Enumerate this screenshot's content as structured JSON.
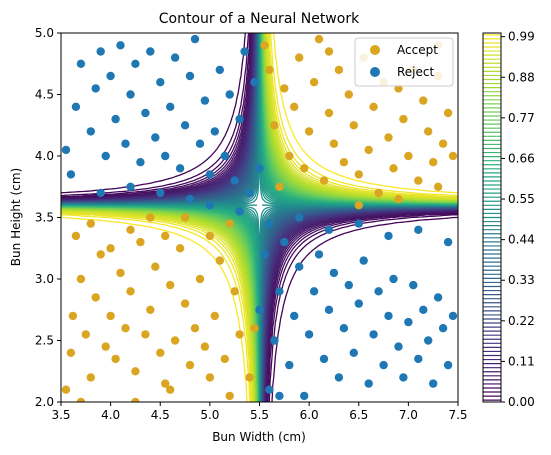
{
  "chart_data": {
    "type": "scatter",
    "title": "Contour of a Neural Network",
    "xlabel": "Bun Width (cm)",
    "ylabel": "Bun Height (cm)",
    "xlim": [
      3.5,
      7.5
    ],
    "ylim": [
      2.0,
      5.0
    ],
    "x_ticks": [
      "3.5",
      "4.0",
      "4.5",
      "5.0",
      "5.5",
      "6.0",
      "6.5",
      "7.0",
      "7.5"
    ],
    "y_ticks": [
      "2.0",
      "2.5",
      "3.0",
      "3.5",
      "4.0",
      "4.5",
      "5.0"
    ],
    "legend_position": "top-right",
    "colorbar": {
      "ticks": [
        "0.00",
        "0.11",
        "0.22",
        "0.33",
        "0.44",
        "0.55",
        "0.66",
        "0.77",
        "0.88",
        "0.99"
      ],
      "range": [
        0,
        1
      ],
      "colormap": "viridis"
    },
    "contour": {
      "levels": 91,
      "surface": "saddle: high where width<5.3 and height<3.6 or width>5.7 and height>3.6; low otherwise"
    },
    "series": [
      {
        "name": "Accept",
        "color": "#daa520",
        "points": [
          [
            3.55,
            2.1
          ],
          [
            3.6,
            2.4
          ],
          [
            3.62,
            2.7
          ],
          [
            3.7,
            3.0
          ],
          [
            3.75,
            2.55
          ],
          [
            3.8,
            2.2
          ],
          [
            3.85,
            2.85
          ],
          [
            3.9,
            3.2
          ],
          [
            3.95,
            2.45
          ],
          [
            4.0,
            2.7
          ],
          [
            4.05,
            2.35
          ],
          [
            4.1,
            3.05
          ],
          [
            4.15,
            2.6
          ],
          [
            4.2,
            2.9
          ],
          [
            4.25,
            2.25
          ],
          [
            4.3,
            3.3
          ],
          [
            4.35,
            2.55
          ],
          [
            4.4,
            2.75
          ],
          [
            4.45,
            3.1
          ],
          [
            4.5,
            2.4
          ],
          [
            4.55,
            2.15
          ],
          [
            4.6,
            2.95
          ],
          [
            4.65,
            2.5
          ],
          [
            4.7,
            3.25
          ],
          [
            4.75,
            2.8
          ],
          [
            4.8,
            2.3
          ],
          [
            4.85,
            2.6
          ],
          [
            4.9,
            3.0
          ],
          [
            4.95,
            2.45
          ],
          [
            5.0,
            2.2
          ],
          [
            5.05,
            2.7
          ],
          [
            5.1,
            3.15
          ],
          [
            5.15,
            2.35
          ],
          [
            5.2,
            2.05
          ],
          [
            5.25,
            2.9
          ],
          [
            5.3,
            2.55
          ],
          [
            3.65,
            3.35
          ],
          [
            3.8,
            3.45
          ],
          [
            4.0,
            3.25
          ],
          [
            4.2,
            3.4
          ],
          [
            4.4,
            3.5
          ],
          [
            4.55,
            3.35
          ],
          [
            4.75,
            3.5
          ],
          [
            5.0,
            3.35
          ],
          [
            5.2,
            3.45
          ],
          [
            3.7,
            2.0
          ],
          [
            4.25,
            2.0
          ],
          [
            4.6,
            2.1
          ],
          [
            5.4,
            2.2
          ],
          [
            5.45,
            2.6
          ],
          [
            5.7,
            3.75
          ],
          [
            5.8,
            4.0
          ],
          [
            5.85,
            4.4
          ],
          [
            5.9,
            4.8
          ],
          [
            5.95,
            3.9
          ],
          [
            6.0,
            4.2
          ],
          [
            6.05,
            4.6
          ],
          [
            6.1,
            4.95
          ],
          [
            6.15,
            3.8
          ],
          [
            6.2,
            4.35
          ],
          [
            6.25,
            4.1
          ],
          [
            6.3,
            4.7
          ],
          [
            6.35,
            3.95
          ],
          [
            6.4,
            4.5
          ],
          [
            6.45,
            4.25
          ],
          [
            6.5,
            3.85
          ],
          [
            6.55,
            4.8
          ],
          [
            6.6,
            4.05
          ],
          [
            6.65,
            4.4
          ],
          [
            6.7,
            3.7
          ],
          [
            6.75,
            4.6
          ],
          [
            6.8,
            4.15
          ],
          [
            6.85,
            3.9
          ],
          [
            6.9,
            4.55
          ],
          [
            6.95,
            4.3
          ],
          [
            7.0,
            4.0
          ],
          [
            7.05,
            4.7
          ],
          [
            7.1,
            3.8
          ],
          [
            7.15,
            4.45
          ],
          [
            7.2,
            4.2
          ],
          [
            7.25,
            3.95
          ],
          [
            7.3,
            4.65
          ],
          [
            7.35,
            4.1
          ],
          [
            7.4,
            4.35
          ],
          [
            7.45,
            4.0
          ],
          [
            5.6,
            4.7
          ],
          [
            5.75,
            4.55
          ],
          [
            6.5,
            3.6
          ],
          [
            6.9,
            3.65
          ],
          [
            7.3,
            3.75
          ],
          [
            5.55,
            4.9
          ],
          [
            5.65,
            4.25
          ],
          [
            6.2,
            4.85
          ],
          [
            7.3,
            4.9
          ]
        ]
      },
      {
        "name": "Reject",
        "color": "#1f77b4",
        "points": [
          [
            3.55,
            4.05
          ],
          [
            3.65,
            4.4
          ],
          [
            3.7,
            4.75
          ],
          [
            3.8,
            4.2
          ],
          [
            3.85,
            4.55
          ],
          [
            3.9,
            4.85
          ],
          [
            3.95,
            4.0
          ],
          [
            4.0,
            4.65
          ],
          [
            4.05,
            4.3
          ],
          [
            4.1,
            4.9
          ],
          [
            4.15,
            4.1
          ],
          [
            4.2,
            4.5
          ],
          [
            4.25,
            4.75
          ],
          [
            4.3,
            3.95
          ],
          [
            4.35,
            4.35
          ],
          [
            4.4,
            4.85
          ],
          [
            4.45,
            4.15
          ],
          [
            4.5,
            4.6
          ],
          [
            4.55,
            4.0
          ],
          [
            4.6,
            4.4
          ],
          [
            4.65,
            4.8
          ],
          [
            4.7,
            3.9
          ],
          [
            4.75,
            4.25
          ],
          [
            4.8,
            4.65
          ],
          [
            4.85,
            4.95
          ],
          [
            4.9,
            4.1
          ],
          [
            4.95,
            4.45
          ],
          [
            5.0,
            3.85
          ],
          [
            5.05,
            4.2
          ],
          [
            5.1,
            4.7
          ],
          [
            5.15,
            4.0
          ],
          [
            5.2,
            4.5
          ],
          [
            5.25,
            3.8
          ],
          [
            5.3,
            4.3
          ],
          [
            5.35,
            4.85
          ],
          [
            3.6,
            3.85
          ],
          [
            3.9,
            3.7
          ],
          [
            4.2,
            3.75
          ],
          [
            4.5,
            3.7
          ],
          [
            4.8,
            3.65
          ],
          [
            5.0,
            3.6
          ],
          [
            5.3,
            3.55
          ],
          [
            5.4,
            3.7
          ],
          [
            5.45,
            4.6
          ],
          [
            5.5,
            3.9
          ],
          [
            5.6,
            2.1
          ],
          [
            5.65,
            2.5
          ],
          [
            5.7,
            2.9
          ],
          [
            5.75,
            3.3
          ],
          [
            5.8,
            2.3
          ],
          [
            5.85,
            2.7
          ],
          [
            5.9,
            3.1
          ],
          [
            5.95,
            2.05
          ],
          [
            6.0,
            2.55
          ],
          [
            6.05,
            2.9
          ],
          [
            6.1,
            3.2
          ],
          [
            6.15,
            2.35
          ],
          [
            6.2,
            2.75
          ],
          [
            6.25,
            3.05
          ],
          [
            6.3,
            2.2
          ],
          [
            6.35,
            2.6
          ],
          [
            6.4,
            2.95
          ],
          [
            6.45,
            2.4
          ],
          [
            6.5,
            2.8
          ],
          [
            6.55,
            3.15
          ],
          [
            6.6,
            2.15
          ],
          [
            6.65,
            2.55
          ],
          [
            6.7,
            2.9
          ],
          [
            6.75,
            2.3
          ],
          [
            6.8,
            2.7
          ],
          [
            6.85,
            3.0
          ],
          [
            6.9,
            2.45
          ],
          [
            6.95,
            2.2
          ],
          [
            7.0,
            2.65
          ],
          [
            7.05,
            2.95
          ],
          [
            7.1,
            2.35
          ],
          [
            7.15,
            2.75
          ],
          [
            7.2,
            2.5
          ],
          [
            7.25,
            2.15
          ],
          [
            7.3,
            2.85
          ],
          [
            7.35,
            2.6
          ],
          [
            7.4,
            2.3
          ],
          [
            7.45,
            2.7
          ],
          [
            5.6,
            3.45
          ],
          [
            5.9,
            3.5
          ],
          [
            6.2,
            3.4
          ],
          [
            6.5,
            3.45
          ],
          [
            6.8,
            3.35
          ],
          [
            7.1,
            3.4
          ],
          [
            7.4,
            3.3
          ],
          [
            5.5,
            2.75
          ],
          [
            5.55,
            3.2
          ],
          [
            5.7,
            2.05
          ]
        ]
      }
    ]
  }
}
